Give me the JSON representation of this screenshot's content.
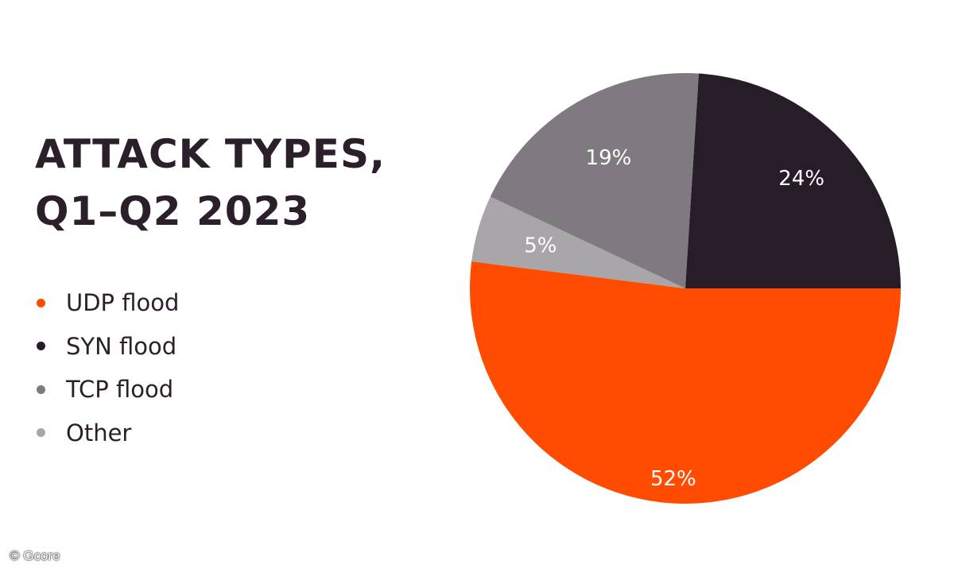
{
  "chart_data": {
    "type": "pie",
    "title_lines": [
      "ATTACK TYPES,",
      "Q1–Q2 2023"
    ],
    "slices": [
      {
        "label": "UDP flood",
        "value": 52,
        "display": "52%",
        "color": "#ff4c00"
      },
      {
        "label": "SYN flood",
        "value": 24,
        "display": "24%",
        "color": "#271d29"
      },
      {
        "label": "TCP flood",
        "value": 19,
        "display": "19%",
        "color": "#7e7a80"
      },
      {
        "label": "Other",
        "value": 5,
        "display": "5%",
        "color": "#a9a6aa"
      }
    ],
    "legend_placement": "left"
  },
  "footer": {
    "copyright": "© Gcore"
  }
}
